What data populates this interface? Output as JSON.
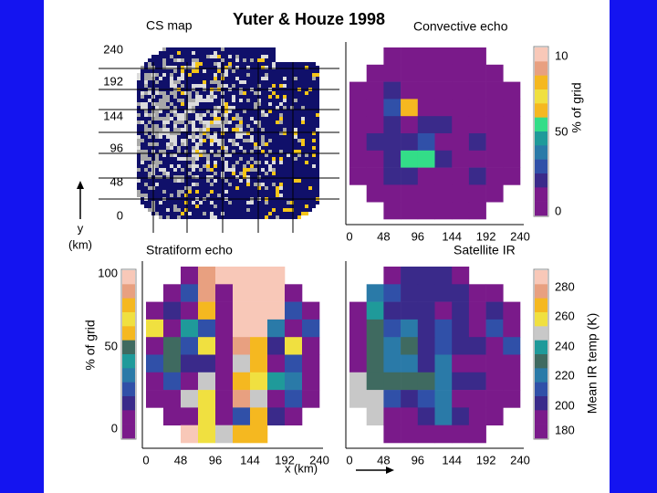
{
  "header": {
    "title": "Yuter & Houze 1998"
  },
  "palette": [
    "#7a1a8a",
    "#3a2a8a",
    "#3050a8",
    "#2a7aa8",
    "#1f9a9a",
    "#3f6a60",
    "#c8c8c8",
    "#f0e040",
    "#f5b820",
    "#e8a080",
    "#f8c8b8",
    "#33dd88"
  ],
  "x_label": "x (km)",
  "panels": {
    "cs_map": {
      "title": "CS map",
      "y_label": "y",
      "y_unit": "(km)",
      "y_ticks": [
        "240",
        "192",
        "144",
        "96",
        "48",
        "0"
      ]
    },
    "convective": {
      "title": "Convective echo",
      "colorbar_label": "% of grid",
      "colorbar_ticks": [
        "10",
        "50",
        "0"
      ],
      "colorbar": [
        10,
        9,
        8,
        7,
        8,
        11,
        4,
        3,
        2,
        1,
        0,
        0
      ],
      "x_ticks": [
        "0",
        "48",
        "96",
        "144",
        "192",
        "240"
      ],
      "cells": [
        [
          null,
          null,
          0,
          0,
          0,
          0,
          0,
          0,
          null,
          null
        ],
        [
          null,
          0,
          0,
          0,
          0,
          0,
          0,
          0,
          0,
          null
        ],
        [
          0,
          0,
          1,
          0,
          0,
          0,
          0,
          0,
          0,
          0
        ],
        [
          0,
          0,
          2,
          8,
          0,
          0,
          0,
          0,
          0,
          0
        ],
        [
          0,
          0,
          1,
          0,
          1,
          1,
          0,
          0,
          0,
          0
        ],
        [
          0,
          1,
          1,
          1,
          2,
          0,
          0,
          1,
          0,
          0
        ],
        [
          0,
          0,
          1,
          11,
          11,
          1,
          0,
          0,
          0,
          0
        ],
        [
          0,
          0,
          1,
          1,
          0,
          0,
          0,
          1,
          0,
          0
        ],
        [
          null,
          0,
          0,
          0,
          0,
          0,
          0,
          0,
          0,
          null
        ],
        [
          null,
          null,
          0,
          0,
          0,
          0,
          0,
          0,
          null,
          null
        ]
      ]
    },
    "stratiform": {
      "title": "Stratiform echo",
      "colorbar_label": "% of grid",
      "colorbar_ticks": [
        "100",
        "50",
        "0"
      ],
      "colorbar": [
        10,
        9,
        8,
        7,
        8,
        5,
        4,
        3,
        2,
        1,
        0,
        0
      ],
      "x_ticks": [
        "0",
        "48",
        "96",
        "144",
        "192",
        "240"
      ],
      "cells": [
        [
          null,
          null,
          0,
          9,
          10,
          10,
          10,
          10,
          null,
          null
        ],
        [
          null,
          0,
          2,
          9,
          0,
          10,
          10,
          10,
          0,
          null
        ],
        [
          0,
          1,
          0,
          8,
          0,
          10,
          10,
          10,
          2,
          0
        ],
        [
          7,
          0,
          4,
          2,
          0,
          10,
          10,
          3,
          0,
          2
        ],
        [
          0,
          5,
          2,
          7,
          0,
          9,
          8,
          1,
          7,
          0
        ],
        [
          2,
          5,
          1,
          1,
          0,
          6,
          8,
          0,
          2,
          0
        ],
        [
          0,
          2,
          0,
          6,
          0,
          8,
          7,
          4,
          3,
          0
        ],
        [
          0,
          0,
          6,
          7,
          0,
          9,
          6,
          0,
          2,
          0
        ],
        [
          null,
          0,
          0,
          7,
          0,
          2,
          8,
          1,
          0,
          null
        ],
        [
          null,
          null,
          10,
          7,
          6,
          8,
          8,
          null,
          null,
          null
        ]
      ]
    },
    "satellite": {
      "title": "Satellite IR",
      "colorbar_label": "Mean IR temp (K)",
      "colorbar_ticks": [
        "280",
        "260",
        "240",
        "220",
        "200",
        "180"
      ],
      "colorbar": [
        10,
        9,
        8,
        7,
        6,
        4,
        5,
        3,
        2,
        1,
        0,
        0
      ],
      "x_ticks": [
        "0",
        "48",
        "96",
        "144",
        "192",
        "240"
      ],
      "cells": [
        [
          null,
          null,
          0,
          1,
          1,
          1,
          0,
          null,
          null,
          null
        ],
        [
          null,
          3,
          2,
          1,
          1,
          1,
          1,
          0,
          0,
          null
        ],
        [
          0,
          4,
          1,
          1,
          1,
          0,
          1,
          0,
          1,
          0
        ],
        [
          0,
          5,
          2,
          3,
          1,
          2,
          1,
          0,
          2,
          0
        ],
        [
          0,
          5,
          3,
          5,
          1,
          2,
          1,
          1,
          0,
          2
        ],
        [
          0,
          5,
          3,
          3,
          1,
          3,
          0,
          0,
          0,
          0
        ],
        [
          6,
          5,
          5,
          5,
          5,
          3,
          1,
          1,
          0,
          0
        ],
        [
          6,
          6,
          2,
          1,
          2,
          3,
          0,
          0,
          0,
          0
        ],
        [
          null,
          6,
          0,
          0,
          1,
          3,
          1,
          0,
          0,
          null
        ],
        [
          null,
          null,
          0,
          0,
          0,
          0,
          0,
          0,
          null,
          null
        ]
      ]
    }
  }
}
